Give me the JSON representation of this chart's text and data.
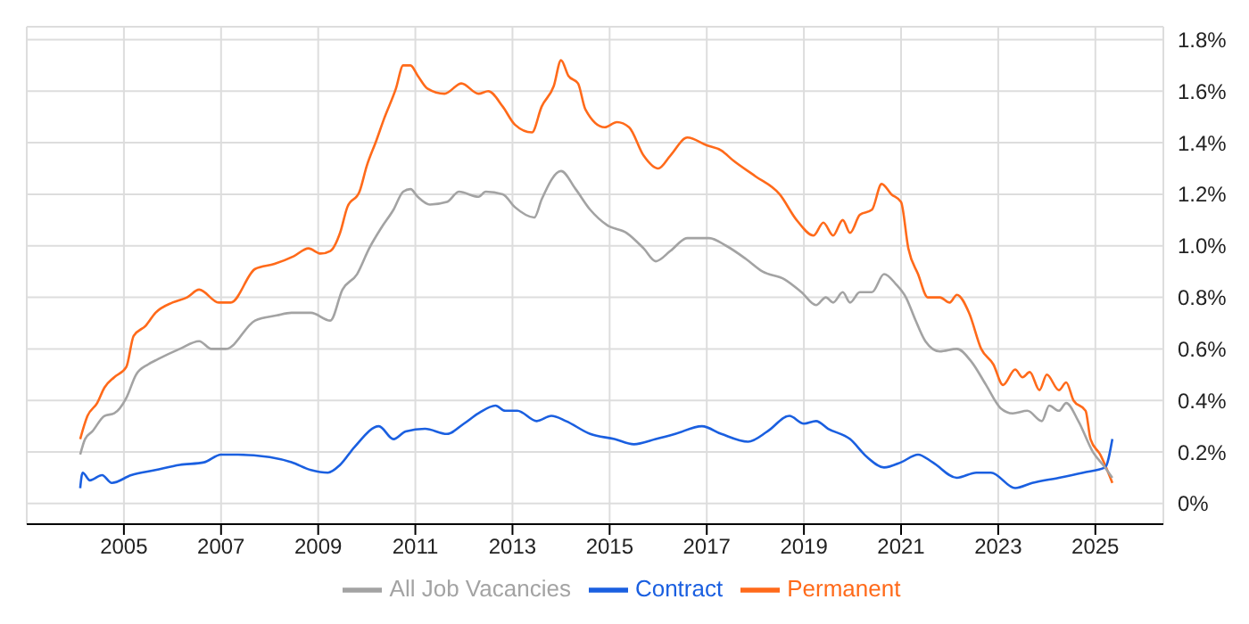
{
  "chart_data": {
    "type": "line",
    "xlim": [
      2003,
      2026.4
    ],
    "xticks": [
      2005,
      2007,
      2009,
      2011,
      2013,
      2015,
      2017,
      2019,
      2021,
      2023,
      2025
    ],
    "ylim": [
      -0.08,
      1.85
    ],
    "yticks": [
      {
        "value": 0,
        "label": "0%"
      },
      {
        "value": 0.2,
        "label": "0.2%"
      },
      {
        "value": 0.4,
        "label": "0.4%"
      },
      {
        "value": 0.6,
        "label": "0.6%"
      },
      {
        "value": 0.8,
        "label": "0.8%"
      },
      {
        "value": 1.0,
        "label": "1.0%"
      },
      {
        "value": 1.2,
        "label": "1.2%"
      },
      {
        "value": 1.4,
        "label": "1.4%"
      },
      {
        "value": 1.6,
        "label": "1.6%"
      },
      {
        "value": 1.8,
        "label": "1.8%"
      }
    ],
    "grid": true,
    "legend": "bottom",
    "marker": "none",
    "line_style": "solid",
    "series": [
      {
        "name": "Permanent",
        "color": "#ff6a1a",
        "x": [
          2004.1,
          2004.25,
          2004.45,
          2004.6,
          2004.8,
          2005.05,
          2005.2,
          2005.45,
          2005.65,
          2006,
          2006.3,
          2006.55,
          2006.95,
          2007.2,
          2007.7,
          2008.1,
          2008.5,
          2008.8,
          2009.05,
          2009.25,
          2009.45,
          2009.6,
          2009.85,
          2010,
          2010.2,
          2010.35,
          2010.6,
          2010.75,
          2010.9,
          2011.05,
          2011.25,
          2011.6,
          2011.95,
          2012.3,
          2012.5,
          2012.8,
          2013.05,
          2013.4,
          2013.6,
          2013.85,
          2014,
          2014.15,
          2014.35,
          2014.5,
          2014.9,
          2015.15,
          2015.4,
          2015.7,
          2016,
          2016.25,
          2016.6,
          2017,
          2017.3,
          2017.55,
          2018,
          2018.5,
          2018.85,
          2019.2,
          2019.4,
          2019.6,
          2019.8,
          2019.95,
          2020.15,
          2020.4,
          2020.6,
          2020.8,
          2021,
          2021.15,
          2021.35,
          2021.55,
          2021.8,
          2022,
          2022.15,
          2022.4,
          2022.65,
          2022.9,
          2023.1,
          2023.35,
          2023.5,
          2023.65,
          2023.85,
          2024,
          2024.25,
          2024.4,
          2024.55,
          2024.8,
          2024.9,
          2025.1,
          2025.35
        ],
        "values": [
          0.25,
          0.34,
          0.39,
          0.45,
          0.49,
          0.53,
          0.65,
          0.69,
          0.74,
          0.78,
          0.8,
          0.83,
          0.78,
          0.78,
          0.91,
          0.93,
          0.96,
          0.99,
          0.97,
          0.98,
          1.05,
          1.15,
          1.21,
          1.31,
          1.41,
          1.49,
          1.61,
          1.7,
          1.7,
          1.66,
          1.61,
          1.59,
          1.63,
          1.59,
          1.6,
          1.54,
          1.47,
          1.44,
          1.54,
          1.62,
          1.72,
          1.66,
          1.63,
          1.53,
          1.46,
          1.48,
          1.46,
          1.35,
          1.3,
          1.35,
          1.42,
          1.39,
          1.37,
          1.33,
          1.27,
          1.2,
          1.1,
          1.04,
          1.09,
          1.04,
          1.1,
          1.05,
          1.12,
          1.14,
          1.24,
          1.2,
          1.17,
          0.99,
          0.89,
          0.8,
          0.8,
          0.78,
          0.81,
          0.74,
          0.6,
          0.54,
          0.46,
          0.52,
          0.49,
          0.51,
          0.44,
          0.5,
          0.44,
          0.47,
          0.4,
          0.36,
          0.25,
          0.19,
          0.08
        ]
      },
      {
        "name": "Contract",
        "color": "#1a5fe0",
        "x": [
          2004.1,
          2004.15,
          2004.3,
          2004.55,
          2004.75,
          2005.15,
          2005.65,
          2006.15,
          2006.65,
          2007,
          2007.35,
          2008,
          2008.45,
          2008.85,
          2009.2,
          2009.45,
          2009.75,
          2010.25,
          2010.55,
          2010.8,
          2011.2,
          2011.65,
          2012,
          2012.3,
          2012.65,
          2012.85,
          2013.1,
          2013.5,
          2013.8,
          2014.1,
          2014.6,
          2015.1,
          2015.5,
          2015.95,
          2016.35,
          2016.9,
          2017.3,
          2017.85,
          2018.25,
          2018.7,
          2019,
          2019.25,
          2019.5,
          2019.95,
          2020.3,
          2020.65,
          2021,
          2021.35,
          2021.65,
          2022.15,
          2022.55,
          2022.85,
          2023.35,
          2023.7,
          2024.25,
          2024.75,
          2025.2,
          2025.35
        ],
        "values": [
          0.06,
          0.12,
          0.09,
          0.11,
          0.08,
          0.11,
          0.13,
          0.15,
          0.16,
          0.19,
          0.19,
          0.18,
          0.16,
          0.13,
          0.12,
          0.15,
          0.22,
          0.3,
          0.25,
          0.28,
          0.29,
          0.27,
          0.31,
          0.35,
          0.38,
          0.36,
          0.36,
          0.32,
          0.34,
          0.32,
          0.27,
          0.25,
          0.23,
          0.25,
          0.27,
          0.3,
          0.27,
          0.24,
          0.28,
          0.34,
          0.31,
          0.32,
          0.29,
          0.25,
          0.18,
          0.14,
          0.16,
          0.19,
          0.16,
          0.1,
          0.12,
          0.12,
          0.06,
          0.08,
          0.1,
          0.12,
          0.14,
          0.25
        ]
      },
      {
        "name": "All Job Vacancies",
        "color": "#a3a3a3",
        "x": [
          2004.1,
          2004.2,
          2004.35,
          2004.6,
          2004.8,
          2005.05,
          2005.25,
          2005.5,
          2005.7,
          2006.15,
          2006.55,
          2006.8,
          2007.1,
          2007.7,
          2008.15,
          2008.45,
          2008.85,
          2009.25,
          2009.5,
          2009.8,
          2010.05,
          2010.3,
          2010.55,
          2010.75,
          2010.9,
          2011.05,
          2011.3,
          2011.65,
          2011.9,
          2012.3,
          2012.45,
          2012.8,
          2013.05,
          2013.45,
          2013.6,
          2014,
          2014.3,
          2014.6,
          2014.95,
          2015.35,
          2015.7,
          2015.95,
          2016.25,
          2016.6,
          2017.05,
          2017.4,
          2017.8,
          2018.15,
          2018.6,
          2018.95,
          2019.25,
          2019.45,
          2019.6,
          2019.8,
          2019.95,
          2020.15,
          2020.4,
          2020.65,
          2020.9,
          2021.1,
          2021.3,
          2021.5,
          2021.8,
          2022.15,
          2022.45,
          2022.75,
          2023.05,
          2023.3,
          2023.6,
          2023.9,
          2024.05,
          2024.25,
          2024.4,
          2024.65,
          2024.95,
          2025.2,
          2025.35
        ],
        "values": [
          0.19,
          0.25,
          0.28,
          0.34,
          0.35,
          0.41,
          0.5,
          0.54,
          0.56,
          0.6,
          0.63,
          0.6,
          0.6,
          0.71,
          0.73,
          0.74,
          0.74,
          0.71,
          0.83,
          0.89,
          0.99,
          1.07,
          1.14,
          1.21,
          1.22,
          1.19,
          1.16,
          1.17,
          1.21,
          1.19,
          1.21,
          1.2,
          1.15,
          1.11,
          1.18,
          1.29,
          1.22,
          1.14,
          1.08,
          1.05,
          0.99,
          0.94,
          0.98,
          1.03,
          1.03,
          1.0,
          0.95,
          0.9,
          0.87,
          0.82,
          0.77,
          0.8,
          0.78,
          0.82,
          0.78,
          0.82,
          0.82,
          0.89,
          0.85,
          0.8,
          0.71,
          0.63,
          0.59,
          0.6,
          0.55,
          0.46,
          0.37,
          0.35,
          0.36,
          0.32,
          0.38,
          0.36,
          0.39,
          0.32,
          0.2,
          0.14,
          0.1
        ]
      }
    ]
  }
}
